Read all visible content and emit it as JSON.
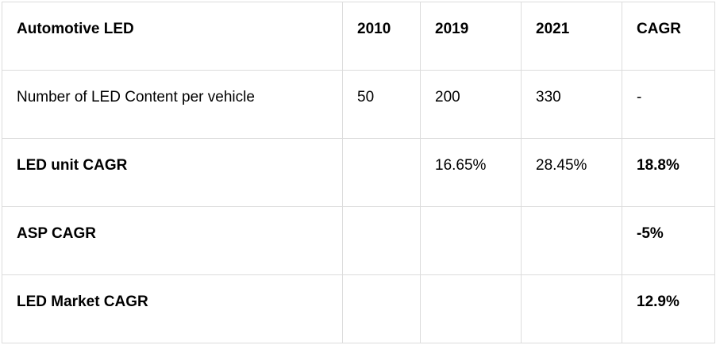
{
  "table": {
    "header": [
      "Automotive LED",
      "2010",
      "2019",
      "2021",
      "CAGR"
    ],
    "rows": [
      [
        "Number of LED Content per vehicle",
        "50",
        "200",
        "330",
        "-"
      ],
      [
        "LED unit CAGR",
        null,
        "16.65%",
        "28.45%",
        "18.8%"
      ],
      [
        "ASP CAGR",
        null,
        null,
        null,
        "-5%"
      ],
      [
        "LED Market CAGR",
        null,
        null,
        null,
        "12.9%"
      ]
    ]
  }
}
